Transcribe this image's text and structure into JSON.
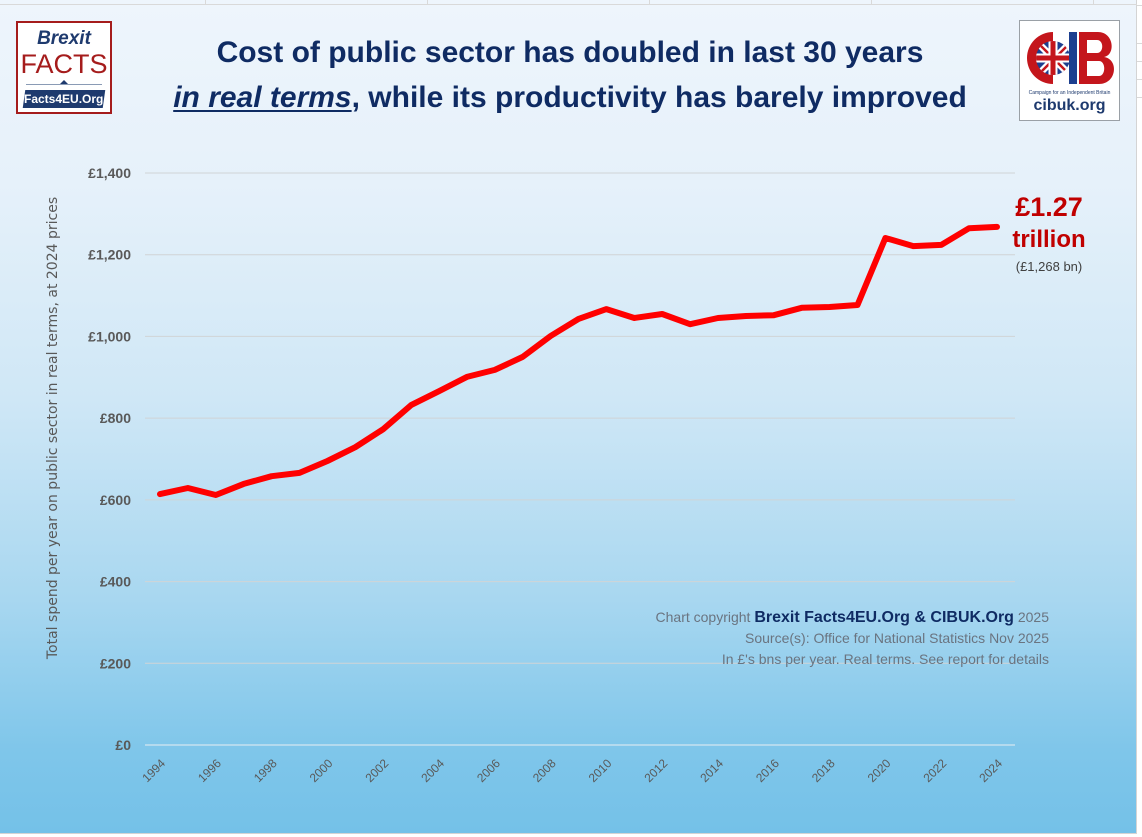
{
  "logos": {
    "left": {
      "line1": "Brexit",
      "line2": "FACTS",
      "line3": "Facts4EU.Org"
    },
    "right": {
      "letters": "CIB",
      "tagline": "Campaign for an Independent Britain",
      "url": "cibuk.org"
    }
  },
  "title": {
    "line1": "Cost of public sector has doubled in last 30 years",
    "line2_emphasis": "in real terms",
    "line2_rest": ", while its productivity has barely improved"
  },
  "callout": {
    "value": "£1.27",
    "unit": "trillion",
    "detail": "(£1,268 bn)"
  },
  "credits": {
    "prefix": "Chart copyright ",
    "brand": "Brexit Facts4EU.Org & CIBUK.Org",
    "suffix": " 2025",
    "source": "Source(s): Office for National Statistics Nov 2025",
    "note": "In £'s bns per year. Real terms. See report for details"
  },
  "colors": {
    "line": "#ff0000",
    "title": "#0f2b63",
    "callout": "#c00000"
  },
  "chart_data": {
    "type": "line",
    "title": "Cost of public sector has doubled in last 30 years in real terms, while its productivity has barely improved",
    "xlabel": "",
    "ylabel": "Total spend per year on public sector in real terms, at 2024 prices",
    "ylim": [
      0,
      1400
    ],
    "yticks": [
      0,
      200,
      400,
      600,
      800,
      1000,
      1200,
      1400
    ],
    "ytick_labels": [
      "£0",
      "£200",
      "£400",
      "£600",
      "£800",
      "£1,000",
      "£1,200",
      "£1,400"
    ],
    "xtick_labels": [
      "1994",
      "1996",
      "1998",
      "2000",
      "2002",
      "2004",
      "2006",
      "2008",
      "2010",
      "2012",
      "2014",
      "2016",
      "2018",
      "2020",
      "2022",
      "2024"
    ],
    "grid": "horizontal",
    "legend": "none",
    "x": [
      1994,
      1995,
      1996,
      1997,
      1998,
      1999,
      2000,
      2001,
      2002,
      2003,
      2004,
      2005,
      2006,
      2007,
      2008,
      2009,
      2010,
      2011,
      2012,
      2013,
      2014,
      2015,
      2016,
      2017,
      2018,
      2019,
      2020,
      2021,
      2022,
      2023,
      2024
    ],
    "series": [
      {
        "name": "Public sector spend (£bn, 2024 prices)",
        "values": [
          614,
          629,
          612,
          639,
          658,
          666,
          695,
          729,
          773,
          832,
          866,
          901,
          918,
          950,
          1001,
          1043,
          1067,
          1045,
          1055,
          1030,
          1045,
          1050,
          1052,
          1070,
          1072,
          1077,
          1241,
          1221,
          1224,
          1265,
          1268
        ]
      }
    ],
    "annotations": [
      "£1.27 trillion",
      "(£1,268 bn)"
    ]
  }
}
